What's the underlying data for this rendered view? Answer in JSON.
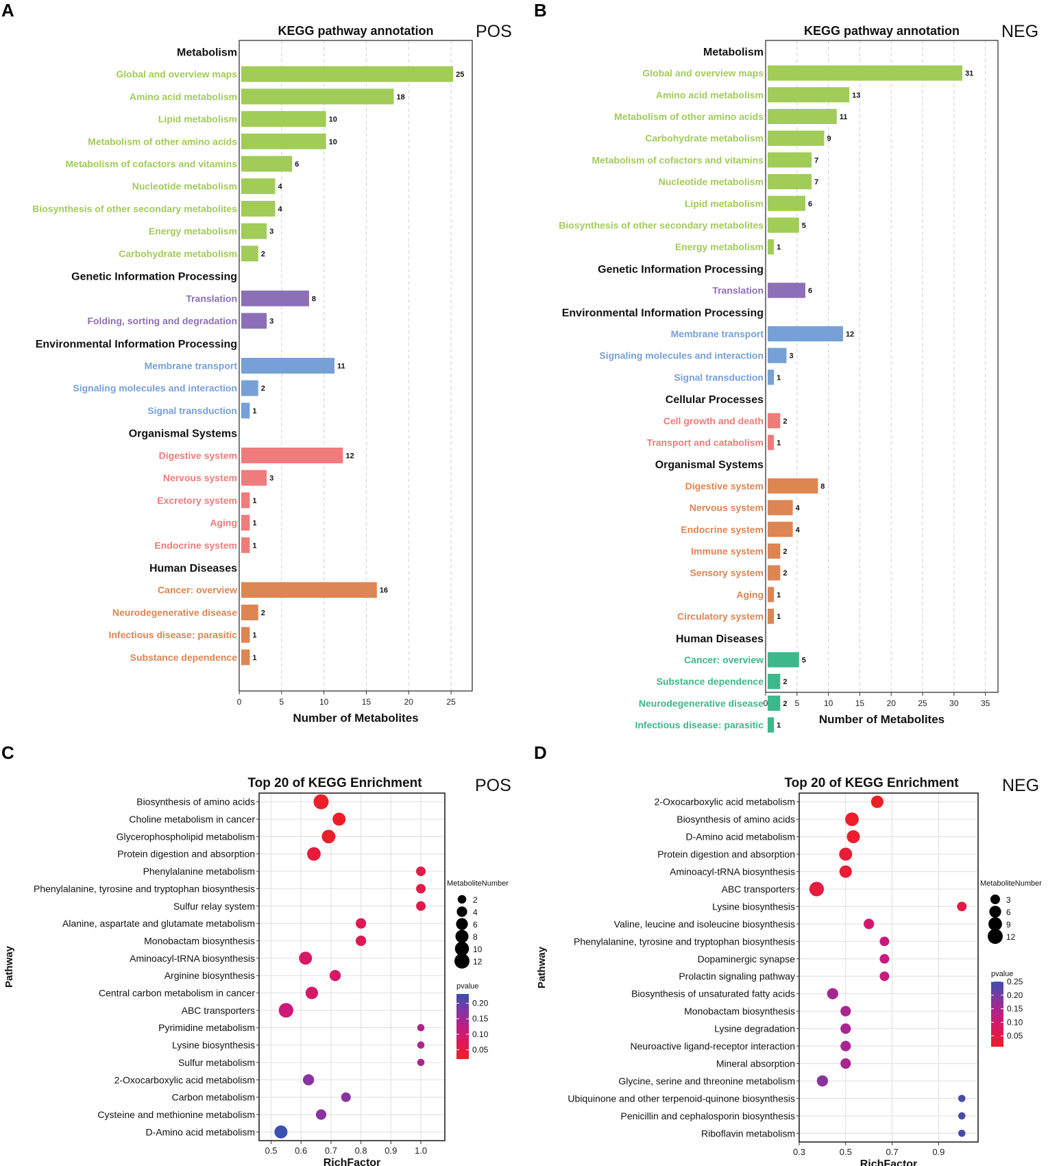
{
  "chart_data": [
    {
      "panel": "A",
      "type": "bar",
      "orientation": "horizontal",
      "title": "KEGG pathway annotation",
      "tag": "POS",
      "xlabel": "Number of Metabolites",
      "xlim": [
        0,
        27.5
      ],
      "xticks": [
        0,
        5,
        10,
        15,
        20,
        25
      ],
      "groups": [
        {
          "name": "Metabolism",
          "color": "#a1cc58",
          "items": [
            {
              "label": "Global and overview maps",
              "value": 25
            },
            {
              "label": "Amino acid metabolism",
              "value": 18
            },
            {
              "label": "Lipid metabolism",
              "value": 10
            },
            {
              "label": "Metabolism of other amino acids",
              "value": 10
            },
            {
              "label": "Metabolism of cofactors and vitamins",
              "value": 6
            },
            {
              "label": "Nucleotide metabolism",
              "value": 4
            },
            {
              "label": "Biosynthesis of other secondary metabolites",
              "value": 4
            },
            {
              "label": "Energy metabolism",
              "value": 3
            },
            {
              "label": "Carbohydrate metabolism",
              "value": 2
            }
          ]
        },
        {
          "name": "Genetic Information Processing",
          "color": "#8b70b7",
          "items": [
            {
              "label": "Translation",
              "value": 8
            },
            {
              "label": "Folding, sorting and degradation",
              "value": 3
            }
          ]
        },
        {
          "name": "Environmental Information Processing",
          "color": "#76a0d6",
          "items": [
            {
              "label": "Membrane transport",
              "value": 11
            },
            {
              "label": "Signaling molecules and interaction",
              "value": 2
            },
            {
              "label": "Signal transduction",
              "value": 1
            }
          ]
        },
        {
          "name": "Organismal Systems",
          "color": "#ef7b7b",
          "items": [
            {
              "label": "Digestive system",
              "value": 12
            },
            {
              "label": "Nervous system",
              "value": 3
            },
            {
              "label": "Excretory system",
              "value": 1
            },
            {
              "label": "Aging",
              "value": 1
            },
            {
              "label": "Endocrine system",
              "value": 1
            }
          ]
        },
        {
          "name": "Human Diseases",
          "color": "#dd8553",
          "items": [
            {
              "label": "Cancer: overview",
              "value": 16
            },
            {
              "label": "Neurodegenerative disease",
              "value": 2
            },
            {
              "label": "Infectious disease: parasitic",
              "value": 1
            },
            {
              "label": "Substance dependence",
              "value": 1
            }
          ]
        }
      ]
    },
    {
      "panel": "B",
      "type": "bar",
      "orientation": "horizontal",
      "title": "KEGG pathway annotation",
      "tag": "NEG",
      "xlabel": "Number of Metabolites",
      "xlim": [
        0,
        37
      ],
      "xticks": [
        0,
        5,
        10,
        15,
        20,
        25,
        30,
        35
      ],
      "groups": [
        {
          "name": "Metabolism",
          "color": "#a1cc58",
          "items": [
            {
              "label": "Global and overview maps",
              "value": 31
            },
            {
              "label": "Amino acid metabolism",
              "value": 13
            },
            {
              "label": "Metabolism of other amino acids",
              "value": 11
            },
            {
              "label": "Carbohydrate metabolism",
              "value": 9
            },
            {
              "label": "Metabolism of cofactors and vitamins",
              "value": 7
            },
            {
              "label": "Nucleotide metabolism",
              "value": 7
            },
            {
              "label": "Lipid metabolism",
              "value": 6
            },
            {
              "label": "Biosynthesis of other secondary metabolites",
              "value": 5
            },
            {
              "label": "Energy metabolism",
              "value": 1
            }
          ]
        },
        {
          "name": "Genetic Information Processing",
          "color": "#8b70b7",
          "items": [
            {
              "label": "Translation",
              "value": 6
            }
          ]
        },
        {
          "name": "Environmental Information Processing",
          "color": "#76a0d6",
          "items": [
            {
              "label": "Membrane transport",
              "value": 12
            },
            {
              "label": "Signaling molecules and interaction",
              "value": 3
            },
            {
              "label": "Signal transduction",
              "value": 1
            }
          ]
        },
        {
          "name": "Cellular Processes",
          "color": "#ef7b7b",
          "items": [
            {
              "label": "Cell growth and death",
              "value": 2
            },
            {
              "label": "Transport and catabolism",
              "value": 1
            }
          ]
        },
        {
          "name": "Organismal Systems",
          "color": "#dd8553",
          "items": [
            {
              "label": "Digestive system",
              "value": 8
            },
            {
              "label": "Nervous system",
              "value": 4
            },
            {
              "label": "Endocrine system",
              "value": 4
            },
            {
              "label": "Immune system",
              "value": 2
            },
            {
              "label": "Sensory system",
              "value": 2
            },
            {
              "label": "Aging",
              "value": 1
            },
            {
              "label": "Circulatory system",
              "value": 1
            }
          ]
        },
        {
          "name": "Human Diseases",
          "color": "#3bb98a",
          "items": [
            {
              "label": "Cancer: overview",
              "value": 5
            },
            {
              "label": "Substance dependence",
              "value": 2
            },
            {
              "label": "Neurodegenerative disease",
              "value": 2
            },
            {
              "label": "Infectious disease: parasitic",
              "value": 1
            }
          ]
        }
      ]
    },
    {
      "panel": "C",
      "type": "scatter",
      "title": "Top 20 of KEGG Enrichment",
      "tag": "POS",
      "xlabel": "RichFactor",
      "ylabel": "Pathway",
      "xlim": [
        0.46,
        1.08
      ],
      "xticks": [
        0.5,
        0.6,
        0.7,
        0.8,
        0.9,
        1.0
      ],
      "xtick_labels": [
        "0.5",
        "0.6",
        "0.7",
        "0.8",
        "0.9",
        "1.0"
      ],
      "size_legend": {
        "title": "MetaboliteNumber",
        "values": [
          2,
          4,
          6,
          8,
          10,
          12
        ]
      },
      "color_legend": {
        "title": "pvalue",
        "range": [
          0.02,
          0.23
        ],
        "ticks": [
          0.05,
          0.1,
          0.15,
          0.2
        ],
        "tick_labels": [
          "0.05",
          "0.10",
          "0.15",
          "0.20"
        ]
      },
      "points": [
        {
          "pathway": "Biosynthesis of amino acids",
          "x": 0.667,
          "size": 12,
          "p": 0.02
        },
        {
          "pathway": "Choline metabolism in cancer",
          "x": 0.727,
          "size": 8,
          "p": 0.02
        },
        {
          "pathway": "Glycerophospholipid metabolism",
          "x": 0.692,
          "size": 9,
          "p": 0.025
        },
        {
          "pathway": "Protein digestion and absorption",
          "x": 0.643,
          "size": 9,
          "p": 0.04
        },
        {
          "pathway": "Phenylalanine metabolism",
          "x": 1.0,
          "size": 3,
          "p": 0.06
        },
        {
          "pathway": "Phenylalanine, tyrosine and tryptophan biosynthesis",
          "x": 1.0,
          "size": 3,
          "p": 0.06
        },
        {
          "pathway": "Sulfur relay system",
          "x": 1.0,
          "size": 3,
          "p": 0.06
        },
        {
          "pathway": "Alanine, aspartate and glutamate metabolism",
          "x": 0.8,
          "size": 4,
          "p": 0.07
        },
        {
          "pathway": "Monobactam biosynthesis",
          "x": 0.8,
          "size": 4,
          "p": 0.07
        },
        {
          "pathway": "Aminoacyl-tRNA biosynthesis",
          "x": 0.615,
          "size": 8,
          "p": 0.09
        },
        {
          "pathway": "Arginine biosynthesis",
          "x": 0.714,
          "size": 5,
          "p": 0.09
        },
        {
          "pathway": "Central carbon metabolism in cancer",
          "x": 0.636,
          "size": 7,
          "p": 0.09
        },
        {
          "pathway": "ABC transporters",
          "x": 0.55,
          "size": 11,
          "p": 0.11
        },
        {
          "pathway": "Pyrimidine metabolism",
          "x": 1.0,
          "size": 1,
          "p": 0.14
        },
        {
          "pathway": "Lysine biosynthesis",
          "x": 1.0,
          "size": 1,
          "p": 0.14
        },
        {
          "pathway": "Sulfur metabolism",
          "x": 1.0,
          "size": 1,
          "p": 0.14
        },
        {
          "pathway": "2-Oxocarboxylic acid metabolism",
          "x": 0.625,
          "size": 5,
          "p": 0.17
        },
        {
          "pathway": "Carbon metabolism",
          "x": 0.75,
          "size": 3,
          "p": 0.17
        },
        {
          "pathway": "Cysteine and methionine metabolism",
          "x": 0.667,
          "size": 4,
          "p": 0.17
        },
        {
          "pathway": "D-Amino acid metabolism",
          "x": 0.533,
          "size": 8,
          "p": 0.23
        }
      ]
    },
    {
      "panel": "D",
      "type": "scatter",
      "title": "Top 20 of KEGG Enrichment",
      "tag": "NEG",
      "xlabel": "RichFactor",
      "ylabel": "Pathway",
      "xlim": [
        0.3,
        1.07
      ],
      "xticks": [
        0.3,
        0.5,
        0.7,
        0.9
      ],
      "xtick_labels": [
        "0.3",
        "0.5",
        "0.7",
        "0.9"
      ],
      "size_legend": {
        "title": "MetaboliteNumber",
        "values": [
          3,
          6,
          9,
          12
        ]
      },
      "color_legend": {
        "title": "pvalue",
        "range": [
          0.01,
          0.25
        ],
        "ticks": [
          0.05,
          0.1,
          0.15,
          0.2,
          0.25
        ],
        "tick_labels": [
          "0.05",
          "0.10",
          "0.15",
          "0.20",
          "0.25"
        ]
      },
      "points": [
        {
          "pathway": "2-Oxocarboxylic acid metabolism",
          "x": 0.636,
          "size": 7,
          "p": 0.01
        },
        {
          "pathway": "Biosynthesis of amino acids",
          "x": 0.527,
          "size": 9,
          "p": 0.015
        },
        {
          "pathway": "D-Amino acid metabolism",
          "x": 0.533,
          "size": 8,
          "p": 0.02
        },
        {
          "pathway": "Protein digestion and absorption",
          "x": 0.5,
          "size": 8,
          "p": 0.03
        },
        {
          "pathway": "Aminoacyl-tRNA biosynthesis",
          "x": 0.5,
          "size": 7,
          "p": 0.03
        },
        {
          "pathway": "ABC transporters",
          "x": 0.375,
          "size": 11,
          "p": 0.04
        },
        {
          "pathway": "Lysine biosynthesis",
          "x": 1.0,
          "size": 3,
          "p": 0.05
        },
        {
          "pathway": "Valine, leucine and isoleucine biosynthesis",
          "x": 0.6,
          "size": 4,
          "p": 0.1
        },
        {
          "pathway": "Phenylalanine, tyrosine and tryptophan biosynthesis",
          "x": 0.667,
          "size": 3,
          "p": 0.12
        },
        {
          "pathway": "Dopaminergic synapse",
          "x": 0.667,
          "size": 3,
          "p": 0.12
        },
        {
          "pathway": "Prolactin signaling pathway",
          "x": 0.667,
          "size": 3,
          "p": 0.12
        },
        {
          "pathway": "Biosynthesis of unsaturated fatty acids",
          "x": 0.444,
          "size": 5,
          "p": 0.15
        },
        {
          "pathway": "Monobactam biosynthesis",
          "x": 0.5,
          "size": 4,
          "p": 0.15
        },
        {
          "pathway": "Lysine degradation",
          "x": 0.5,
          "size": 4,
          "p": 0.15
        },
        {
          "pathway": "Neuroactive ligand-receptor interaction",
          "x": 0.5,
          "size": 4,
          "p": 0.15
        },
        {
          "pathway": "Mineral absorption",
          "x": 0.5,
          "size": 4,
          "p": 0.15
        },
        {
          "pathway": "Glycine, serine and threonine metabolism",
          "x": 0.4,
          "size": 5,
          "p": 0.18
        },
        {
          "pathway": "Ubiquinone and other terpenoid-quinone biosynthesis",
          "x": 1.0,
          "size": 1,
          "p": 0.24
        },
        {
          "pathway": "Penicillin and cephalosporin biosynthesis",
          "x": 1.0,
          "size": 1,
          "p": 0.24
        },
        {
          "pathway": "Riboflavin metabolism",
          "x": 1.0,
          "size": 1,
          "p": 0.24
        }
      ]
    }
  ],
  "panel_letters": [
    "A",
    "B",
    "C",
    "D"
  ]
}
